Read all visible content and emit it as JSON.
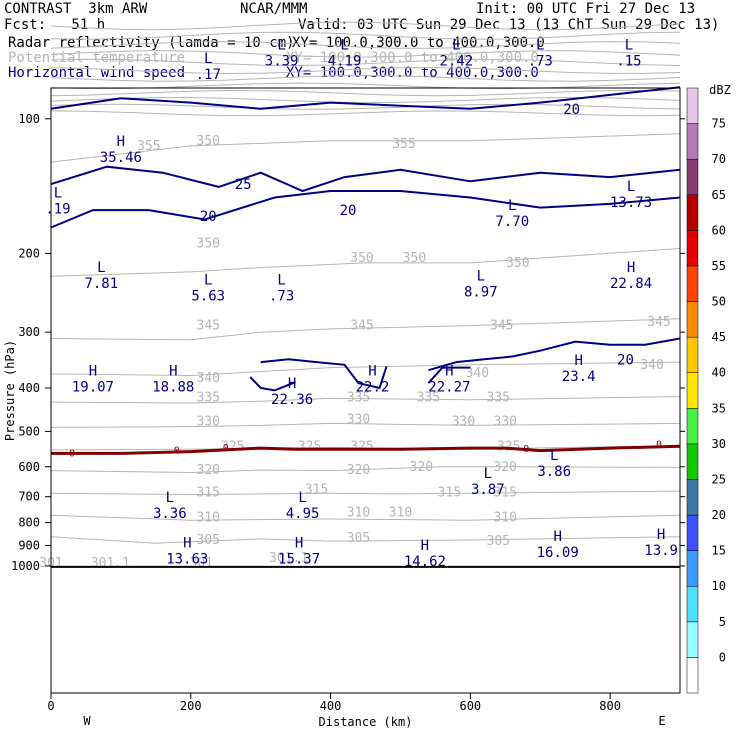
{
  "header": {
    "model": "CONTRAST  3km ARW",
    "center": "NCAR/MMM",
    "init": "Init: 00 UTC Fri 27 Dec 13",
    "fcst": "Fcst:   51 h",
    "valid": "Valid: 03 UTC Sun 29 Dec 13 (13 ChT Sun 29 Dec 13)",
    "field1": "Radar reflectivity (lamda = 10 cm)",
    "field1_xy": "XY= 100.0,300.0 to 400.0,300.0",
    "field2": "Potential temperature",
    "field2_xy": "XY= 100.0,300.0 to 400.0,300.0",
    "field3": "Horizontal wind speed",
    "field3_xy": "XY= 100.0,300.0 to 400.0,300.0"
  },
  "colors": {
    "theta": "#b4b4b4",
    "wind": "#00007f",
    "refl_zero": "#7f0000"
  },
  "chart_data": {
    "type": "line",
    "xlabel": "Distance (km)",
    "ylabel": "Pressure (hPa)",
    "xlim": [
      0,
      900
    ],
    "ylim": [
      1050,
      50
    ],
    "y_scale": "log",
    "x_ticks": [
      0,
      200,
      400,
      600,
      800
    ],
    "y_ticks": [
      100,
      200,
      300,
      400,
      500,
      600,
      700,
      800,
      900,
      1000
    ],
    "x_end_labels": [
      "W",
      "E"
    ],
    "theta_contours": [
      {
        "value": 305,
        "points": [
          [
            0,
            860
          ],
          [
            150,
            890
          ],
          [
            300,
            870
          ],
          [
            400,
            880
          ],
          [
            600,
            875
          ],
          [
            900,
            860
          ]
        ]
      },
      {
        "value": 310,
        "points": [
          [
            0,
            770
          ],
          [
            200,
            790
          ],
          [
            400,
            785
          ],
          [
            600,
            790
          ],
          [
            900,
            770
          ]
        ]
      },
      {
        "value": 315,
        "points": [
          [
            0,
            688
          ],
          [
            200,
            692
          ],
          [
            400,
            688
          ],
          [
            500,
            690
          ],
          [
            600,
            688
          ],
          [
            900,
            680
          ]
        ]
      },
      {
        "value": 320,
        "points": [
          [
            0,
            612
          ],
          [
            200,
            618
          ],
          [
            300,
            610
          ],
          [
            400,
            612
          ],
          [
            560,
            600
          ],
          [
            650,
            600
          ],
          [
            900,
            602
          ]
        ]
      },
      {
        "value": 325,
        "points": [
          [
            0,
            550
          ],
          [
            200,
            548
          ],
          [
            300,
            545
          ],
          [
            400,
            543
          ],
          [
            600,
            548
          ],
          [
            900,
            538
          ]
        ]
      },
      {
        "value": 330,
        "points": [
          [
            0,
            490
          ],
          [
            200,
            488
          ],
          [
            300,
            485
          ],
          [
            400,
            480
          ],
          [
            600,
            485
          ],
          [
            900,
            480
          ]
        ]
      },
      {
        "value": 335,
        "points": [
          [
            0,
            430
          ],
          [
            200,
            432
          ],
          [
            300,
            428
          ],
          [
            400,
            422
          ],
          [
            600,
            425
          ],
          [
            900,
            418
          ]
        ]
      },
      {
        "value": 340,
        "points": [
          [
            0,
            372
          ],
          [
            200,
            375
          ],
          [
            400,
            360
          ],
          [
            600,
            355
          ],
          [
            900,
            350
          ]
        ]
      },
      {
        "value": 345,
        "points": [
          [
            0,
            310
          ],
          [
            200,
            312
          ],
          [
            300,
            300
          ],
          [
            400,
            295
          ],
          [
            600,
            290
          ],
          [
            900,
            280
          ]
        ]
      },
      {
        "value": 350,
        "points": [
          [
            0,
            225
          ],
          [
            200,
            220
          ],
          [
            300,
            215
          ],
          [
            450,
            210
          ],
          [
            600,
            210
          ],
          [
            900,
            195
          ]
        ]
      },
      {
        "value": 355,
        "points": [
          [
            0,
            125
          ],
          [
            200,
            115
          ],
          [
            400,
            112
          ],
          [
            600,
            112
          ],
          [
            900,
            108
          ]
        ]
      }
    ],
    "theta_labels": [
      {
        "text": "355",
        "x": 140,
        "p": 115
      },
      {
        "text": "350",
        "x": 225,
        "p": 112
      },
      {
        "text": "355",
        "x": 505,
        "p": 114
      },
      {
        "text": "350",
        "x": 225,
        "p": 190
      },
      {
        "text": "350",
        "x": 445,
        "p": 205
      },
      {
        "text": "350",
        "x": 520,
        "p": 205
      },
      {
        "text": "350",
        "x": 668,
        "p": 210
      },
      {
        "text": "345",
        "x": 225,
        "p": 290
      },
      {
        "text": "345",
        "x": 445,
        "p": 290
      },
      {
        "text": "345",
        "x": 645,
        "p": 290
      },
      {
        "text": "345",
        "x": 870,
        "p": 285
      },
      {
        "text": "340",
        "x": 225,
        "p": 380
      },
      {
        "text": "340",
        "x": 610,
        "p": 370
      },
      {
        "text": "340",
        "x": 860,
        "p": 355
      },
      {
        "text": "335",
        "x": 225,
        "p": 420
      },
      {
        "text": "335",
        "x": 440,
        "p": 420
      },
      {
        "text": "335",
        "x": 540,
        "p": 420
      },
      {
        "text": "335",
        "x": 640,
        "p": 420
      },
      {
        "text": "330",
        "x": 225,
        "p": 475
      },
      {
        "text": "330",
        "x": 440,
        "p": 470
      },
      {
        "text": "330",
        "x": 590,
        "p": 475
      },
      {
        "text": "330",
        "x": 650,
        "p": 475
      },
      {
        "text": "325",
        "x": 260,
        "p": 540
      },
      {
        "text": "325",
        "x": 370,
        "p": 540
      },
      {
        "text": "325",
        "x": 445,
        "p": 540
      },
      {
        "text": "325",
        "x": 655,
        "p": 540
      },
      {
        "text": "320",
        "x": 225,
        "p": 610
      },
      {
        "text": "320",
        "x": 440,
        "p": 610
      },
      {
        "text": "320",
        "x": 530,
        "p": 600
      },
      {
        "text": "320",
        "x": 650,
        "p": 600
      },
      {
        "text": "315",
        "x": 225,
        "p": 685
      },
      {
        "text": "315",
        "x": 380,
        "p": 675
      },
      {
        "text": "315",
        "x": 570,
        "p": 685
      },
      {
        "text": "315",
        "x": 650,
        "p": 685
      },
      {
        "text": "310",
        "x": 225,
        "p": 780
      },
      {
        "text": "310",
        "x": 440,
        "p": 760
      },
      {
        "text": "310",
        "x": 500,
        "p": 760
      },
      {
        "text": "310",
        "x": 650,
        "p": 780
      },
      {
        "text": "305",
        "x": 225,
        "p": 875
      },
      {
        "text": "305",
        "x": 440,
        "p": 865
      },
      {
        "text": "305",
        "x": 640,
        "p": 880
      },
      {
        "text": "301",
        "x": 0,
        "p": 985
      },
      {
        "text": "301.1",
        "x": 85,
        "p": 985
      },
      {
        "text": "301",
        "x": 215,
        "p": 985
      },
      {
        "text": "301.1",
        "x": 340,
        "p": 960
      }
    ],
    "wind_contours": [
      {
        "value": 20,
        "points": [
          [
            0,
            95
          ],
          [
            100,
            90
          ],
          [
            200,
            92
          ],
          [
            300,
            95
          ],
          [
            400,
            92
          ],
          [
            600,
            95
          ],
          [
            700,
            92
          ],
          [
            900,
            85
          ]
        ]
      },
      {
        "value": 20,
        "points": [
          [
            0,
            175
          ],
          [
            60,
            160
          ],
          [
            140,
            160
          ],
          [
            220,
            168
          ],
          [
            320,
            150
          ],
          [
            400,
            145
          ],
          [
            500,
            145
          ],
          [
            600,
            150
          ],
          [
            700,
            158
          ],
          [
            800,
            155
          ],
          [
            900,
            150
          ]
        ]
      },
      {
        "value": 25,
        "points": [
          [
            0,
            140
          ],
          [
            80,
            128
          ],
          [
            160,
            132
          ],
          [
            240,
            142
          ],
          [
            300,
            132
          ],
          [
            360,
            145
          ],
          [
            420,
            135
          ],
          [
            500,
            130
          ],
          [
            600,
            138
          ],
          [
            700,
            132
          ],
          [
            800,
            135
          ],
          [
            900,
            130
          ]
        ]
      },
      {
        "value": 20,
        "points": [
          [
            300,
            350
          ],
          [
            340,
            345
          ],
          [
            380,
            350
          ],
          [
            420,
            355
          ],
          [
            440,
            390
          ],
          [
            470,
            400
          ],
          [
            480,
            358
          ]
        ]
      },
      {
        "value": 20,
        "points": [
          [
            285,
            378
          ],
          [
            300,
            400
          ],
          [
            320,
            405
          ],
          [
            350,
            388
          ]
        ]
      },
      {
        "value": 20,
        "points": [
          [
            540,
            365
          ],
          [
            580,
            350
          ],
          [
            620,
            345
          ],
          [
            660,
            340
          ],
          [
            700,
            330
          ],
          [
            750,
            315
          ],
          [
            800,
            320
          ],
          [
            850,
            320
          ],
          [
            900,
            310
          ]
        ]
      },
      {
        "value": 20,
        "points": [
          [
            540,
            390
          ],
          [
            560,
            360
          ],
          [
            600,
            360
          ]
        ]
      }
    ],
    "wind_labels": [
      {
        "text": "20",
        "x": 225,
        "p": 165
      },
      {
        "text": "25",
        "x": 275,
        "p": 140
      },
      {
        "text": "20",
        "x": 425,
        "p": 160
      },
      {
        "text": "20",
        "x": 745,
        "p": 95
      },
      {
        "text": "20",
        "x": 822,
        "p": 345
      }
    ],
    "refl_zero_contour": {
      "value": 0,
      "points": [
        [
          0,
          560
        ],
        [
          100,
          560
        ],
        [
          200,
          555
        ],
        [
          300,
          545
        ],
        [
          350,
          548
        ],
        [
          420,
          548
        ],
        [
          500,
          548
        ],
        [
          600,
          545
        ],
        [
          650,
          545
        ],
        [
          700,
          552
        ],
        [
          800,
          545
        ],
        [
          900,
          540
        ]
      ],
      "labels": [
        {
          "text": "0",
          "x": 30,
          "p": 560
        },
        {
          "text": "0",
          "x": 180,
          "p": 552
        },
        {
          "text": "0",
          "x": 250,
          "p": 545
        },
        {
          "text": "0",
          "x": 680,
          "p": 548
        },
        {
          "text": "0",
          "x": 870,
          "p": 535
        }
      ]
    },
    "markers": [
      {
        "type": "L",
        "x": 225,
        "p": 75,
        "value": ".17"
      },
      {
        "type": "L",
        "x": 330,
        "p": 70,
        "value": "3.39"
      },
      {
        "type": "L",
        "x": 420,
        "p": 70,
        "value": "4.19"
      },
      {
        "type": "L",
        "x": 580,
        "p": 70,
        "value": "2.42"
      },
      {
        "type": "L",
        "x": 700,
        "p": 70,
        "value": ".73"
      },
      {
        "type": "L",
        "x": 827,
        "p": 70,
        "value": ".15"
      },
      {
        "type": "H",
        "x": 100,
        "p": 115,
        "value": "35.46"
      },
      {
        "type": "L",
        "x": 10,
        "p": 150,
        "value": ".19"
      },
      {
        "type": "L",
        "x": 660,
        "p": 160,
        "value": "7.70"
      },
      {
        "type": "L",
        "x": 830,
        "p": 145,
        "value": "13.73"
      },
      {
        "type": "L",
        "x": 72,
        "p": 220,
        "value": "7.81"
      },
      {
        "type": "L",
        "x": 225,
        "p": 235,
        "value": "5.63"
      },
      {
        "type": "L",
        "x": 330,
        "p": 235,
        "value": ".73"
      },
      {
        "type": "L",
        "x": 615,
        "p": 230,
        "value": "8.97"
      },
      {
        "type": "H",
        "x": 830,
        "p": 220,
        "value": "22.84"
      },
      {
        "type": "H",
        "x": 60,
        "p": 375,
        "value": "19.07"
      },
      {
        "type": "H",
        "x": 175,
        "p": 375,
        "value": "18.88"
      },
      {
        "type": "H",
        "x": 345,
        "p": 400,
        "value": "22.36"
      },
      {
        "type": "H",
        "x": 460,
        "p": 375,
        "value": "22.2"
      },
      {
        "type": "H",
        "x": 570,
        "p": 375,
        "value": "22.27"
      },
      {
        "type": "H",
        "x": 755,
        "p": 355,
        "value": "23.4"
      },
      {
        "type": "L",
        "x": 720,
        "p": 580,
        "value": "3.86"
      },
      {
        "type": "L",
        "x": 625,
        "p": 635,
        "value": "3.87"
      },
      {
        "type": "L",
        "x": 170,
        "p": 720,
        "value": "3.36"
      },
      {
        "type": "L",
        "x": 360,
        "p": 720,
        "value": "4.95"
      },
      {
        "type": "H",
        "x": 873,
        "p": 870,
        "value": "13.9"
      },
      {
        "type": "H",
        "x": 725,
        "p": 880,
        "value": "16.09"
      },
      {
        "type": "H",
        "x": 195,
        "p": 910,
        "value": "13.63"
      },
      {
        "type": "H",
        "x": 355,
        "p": 910,
        "value": "15.37"
      },
      {
        "type": "H",
        "x": 535,
        "p": 920,
        "value": "14.62"
      }
    ],
    "colorbar": {
      "label": "dBZ",
      "levels": [
        0,
        5,
        10,
        15,
        20,
        25,
        30,
        35,
        40,
        45,
        50,
        55,
        60,
        65,
        70,
        75
      ],
      "colors": [
        "#ffffff",
        "#96ffff",
        "#50e0ff",
        "#3c9bff",
        "#3c50ff",
        "#3c78aa",
        "#12c800",
        "#46f046",
        "#ffe600",
        "#ffc800",
        "#ff8c00",
        "#ff4600",
        "#e60000",
        "#b40000",
        "#8b3c6e",
        "#b478b4",
        "#e6c8e6"
      ]
    }
  }
}
